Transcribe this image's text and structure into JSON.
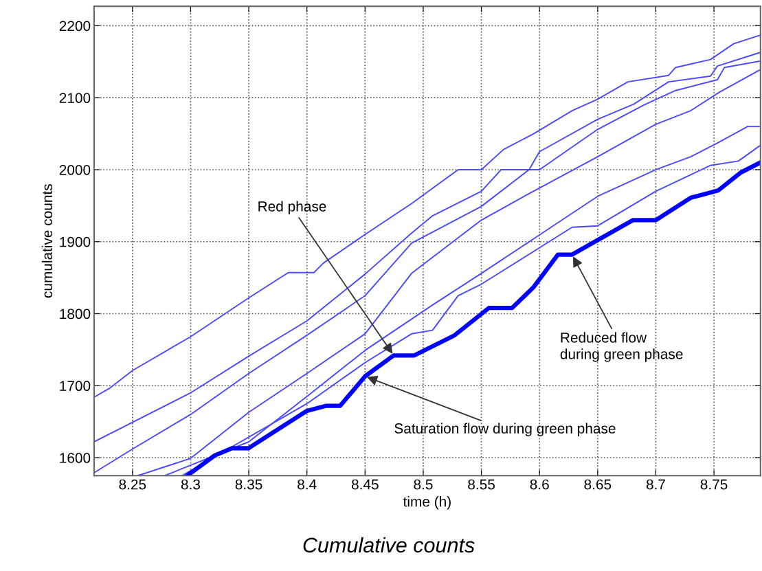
{
  "chart_data": {
    "type": "line",
    "xlabel": "time (h)",
    "ylabel": "cumulative counts",
    "xlim": [
      8.217,
      8.79
    ],
    "ylim": [
      1575,
      2227
    ],
    "xticks": [
      8.25,
      8.3,
      8.35,
      8.4,
      8.45,
      8.5,
      8.55,
      8.6,
      8.65,
      8.7,
      8.75
    ],
    "yticks": [
      1600,
      1700,
      1800,
      1900,
      2000,
      2100,
      2200
    ],
    "grid": true,
    "line_style": "solid",
    "marker": "none",
    "series": [
      {
        "color": "#4a4aff",
        "x": [
          8.217,
          8.23,
          8.25,
          8.3,
          8.35,
          8.384,
          8.406,
          8.414,
          8.45,
          8.49,
          8.53,
          8.55,
          8.569,
          8.595,
          8.628,
          8.65,
          8.676,
          8.711,
          8.717,
          8.747,
          8.767,
          8.79
        ],
        "values": [
          1684,
          1696,
          1721,
          1768,
          1822,
          1857,
          1857,
          1870,
          1910,
          1953,
          2000,
          2000,
          2028,
          2050,
          2082,
          2098,
          2122,
          2131,
          2142,
          2153,
          2175,
          2187
        ]
      },
      {
        "color": "#4a4aff",
        "x": [
          8.217,
          8.3,
          8.35,
          8.4,
          8.45,
          8.49,
          8.508,
          8.55,
          8.567,
          8.591,
          8.6,
          8.65,
          8.681,
          8.711,
          8.747,
          8.753,
          8.79
        ],
        "values": [
          1622,
          1690,
          1741,
          1790,
          1855,
          1912,
          1936,
          1970,
          2000,
          2000,
          2025,
          2070,
          2091,
          2122,
          2130,
          2144,
          2163
        ]
      },
      {
        "color": "#4a4aff",
        "x": [
          8.217,
          8.25,
          8.3,
          8.35,
          8.4,
          8.45,
          8.49,
          8.55,
          8.591,
          8.6,
          8.65,
          8.69,
          8.717,
          8.753,
          8.759,
          8.79
        ],
        "values": [
          1579,
          1612,
          1660,
          1717,
          1770,
          1825,
          1898,
          1949,
          2000,
          2000,
          2056,
          2090,
          2110,
          2125,
          2142,
          2151
        ]
      },
      {
        "color": "#4a4aff",
        "x": [
          8.2547,
          8.3,
          8.35,
          8.4,
          8.45,
          8.49,
          8.55,
          8.589,
          8.65,
          8.7,
          8.73,
          8.755,
          8.79
        ],
        "values": [
          1575,
          1599,
          1663,
          1717,
          1772,
          1856,
          1930,
          1965,
          2018,
          2063,
          2082,
          2108,
          2139
        ]
      },
      {
        "color": "#4a4aff",
        "x": [
          8.2778,
          8.35,
          8.4,
          8.45,
          8.508,
          8.55,
          8.595,
          8.65,
          8.7,
          8.73,
          8.753,
          8.779,
          8.79
        ],
        "values": [
          1575,
          1622,
          1685,
          1749,
          1812,
          1856,
          1904,
          1963,
          2000,
          2018,
          2037,
          2060,
          2060
        ]
      },
      {
        "color": "#4a4aff",
        "x": [
          8.2925,
          8.4,
          8.45,
          8.49,
          8.508,
          8.53,
          8.55,
          8.628,
          8.65,
          8.7,
          8.747,
          8.771,
          8.79
        ],
        "values": [
          1575,
          1675,
          1732,
          1772,
          1777,
          1825,
          1841,
          1920,
          1922,
          1970,
          2006,
          2012,
          2034
        ]
      },
      {
        "color": "#0000ff",
        "x": [
          8.297,
          8.3207,
          8.3355,
          8.3497,
          8.4,
          8.4167,
          8.4286,
          8.45,
          8.4746,
          8.4923,
          8.527,
          8.5565,
          8.5765,
          8.595,
          8.6158,
          8.628,
          8.652,
          8.6805,
          8.7,
          8.73,
          8.7535,
          8.773,
          8.79
        ],
        "values": [
          1575,
          1603,
          1613,
          1613,
          1665,
          1672,
          1672,
          1713,
          1742,
          1742,
          1770,
          1808,
          1808,
          1837,
          1882,
          1882,
          1904,
          1930,
          1930,
          1961,
          1971,
          1996,
          2010
        ]
      }
    ],
    "annotations": [
      {
        "text": "Red phase",
        "x": 8.4746,
        "y": 1742
      },
      {
        "text": "Saturation flow during green phase",
        "x": 8.45,
        "y": 1713
      },
      {
        "text": "Reduced flow\nduring green phase",
        "x": 8.628,
        "y": 1882
      },
      "Cumulative counts"
    ]
  }
}
